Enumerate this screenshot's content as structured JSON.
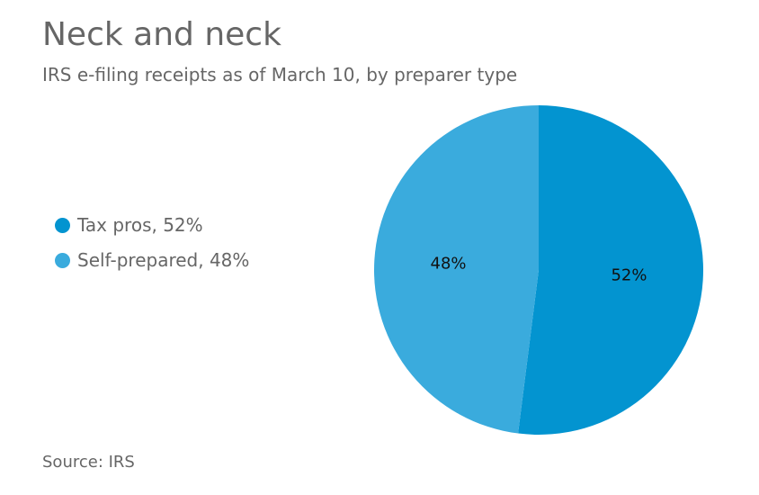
{
  "chart_data": {
    "type": "pie",
    "title": "Neck and neck",
    "subtitle": "IRS e-filing receipts as of March 10, by preparer type",
    "slices": [
      {
        "name": "Tax pros",
        "legend_label": "Tax pros, 52%",
        "value": 52,
        "data_label": "52%",
        "color": "#0394d0"
      },
      {
        "name": "Self-prepared",
        "legend_label": "Self-prepared, 48%",
        "value": 48,
        "data_label": "48%",
        "color": "#3aabdd"
      }
    ],
    "legend_placement": "left",
    "source": "Source: IRS"
  }
}
